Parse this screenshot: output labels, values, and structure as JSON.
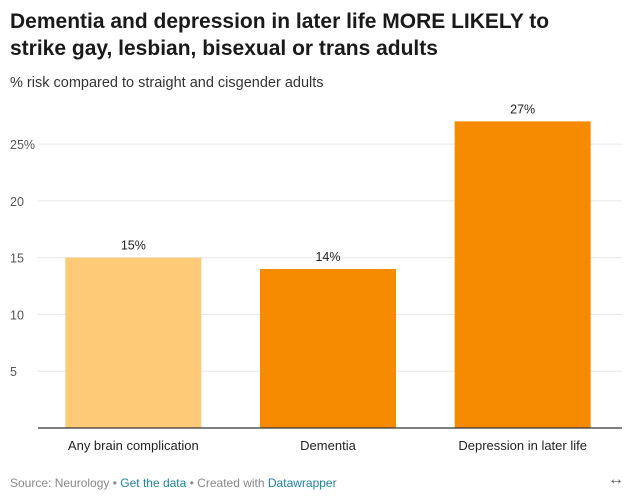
{
  "header": {
    "title": "Dementia and depression in later life MORE LIKELY to strike gay, lesbian, bisexual or trans adults",
    "subtitle": "% risk compared to straight and cisgender adults"
  },
  "footer": {
    "source": "Source: Neurology",
    "sep1": " • ",
    "get_data": "Get the data",
    "sep2": " • Created with ",
    "datawrapper": "Datawrapper"
  },
  "icons": {
    "expand": "↔"
  },
  "colors": {
    "light_bar": "#fdca78",
    "bar": "#f78b00",
    "grid": "#e6e6e6",
    "axis": "#333333"
  },
  "chart_data": {
    "type": "bar",
    "categories": [
      "Any brain complication",
      "Dementia",
      "Depression in later life"
    ],
    "values": [
      15,
      14,
      27
    ],
    "value_labels": [
      "15%",
      "14%",
      "27%"
    ],
    "yticks": [
      5,
      10,
      15,
      20,
      25
    ],
    "ytick_labels": [
      "5",
      "10",
      "15",
      "20",
      "25%"
    ],
    "ylim": [
      0,
      28
    ],
    "grid": true,
    "xlabel": "",
    "ylabel": ""
  }
}
